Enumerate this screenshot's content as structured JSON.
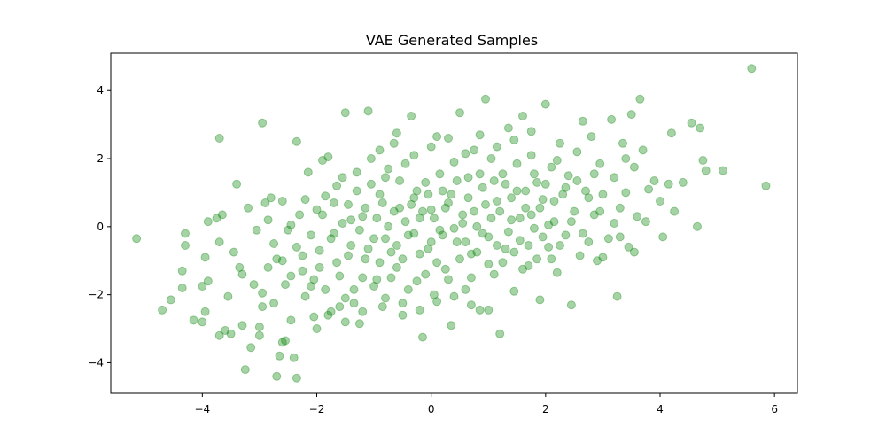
{
  "chart_data": {
    "type": "scatter",
    "title": "VAE Generated Samples",
    "xlabel": "",
    "ylabel": "",
    "xlim": [
      -5.6,
      6.4
    ],
    "ylim": [
      -4.9,
      5.1
    ],
    "xticks": [
      -4,
      -2,
      0,
      2,
      4,
      6
    ],
    "yticks": [
      -4,
      -2,
      0,
      2,
      4
    ],
    "xtick_labels": [
      "−4",
      "−2",
      "0",
      "2",
      "4",
      "6"
    ],
    "ytick_labels": [
      "−4",
      "−2",
      "0",
      "2",
      "4"
    ],
    "grid": false,
    "marker_color": "#008000",
    "marker_alpha": 0.35,
    "series": [
      {
        "points": [
          [
            -5.15,
            -0.35
          ],
          [
            -4.7,
            -2.45
          ],
          [
            -4.55,
            -2.15
          ],
          [
            -4.35,
            -1.3
          ],
          [
            -4.3,
            -0.2
          ],
          [
            -4.3,
            -0.55
          ],
          [
            -4.35,
            -1.8
          ],
          [
            -4.15,
            -2.75
          ],
          [
            -4.0,
            -2.8
          ],
          [
            -4.0,
            -1.75
          ],
          [
            -3.95,
            -2.5
          ],
          [
            -3.95,
            -0.9
          ],
          [
            -3.9,
            0.15
          ],
          [
            -3.9,
            -1.6
          ],
          [
            -3.75,
            0.25
          ],
          [
            -3.7,
            -0.45
          ],
          [
            -3.65,
            0.35
          ],
          [
            -3.6,
            -3.05
          ],
          [
            -3.7,
            -3.2
          ],
          [
            -3.7,
            2.6
          ],
          [
            -3.5,
            -3.15
          ],
          [
            -3.45,
            -0.75
          ],
          [
            -3.4,
            1.25
          ],
          [
            -3.35,
            -1.2
          ],
          [
            -3.3,
            -2.9
          ],
          [
            -3.25,
            -4.2
          ],
          [
            -3.15,
            -3.55
          ],
          [
            -3.1,
            -1.7
          ],
          [
            -3.0,
            -2.95
          ],
          [
            -3.0,
            -3.2
          ],
          [
            -2.95,
            3.05
          ],
          [
            -2.9,
            0.7
          ],
          [
            -2.85,
            -1.2
          ],
          [
            -2.8,
            0.85
          ],
          [
            -2.75,
            -0.5
          ],
          [
            -2.75,
            -2.25
          ],
          [
            -2.7,
            -4.4
          ],
          [
            -2.65,
            -3.8
          ],
          [
            -2.6,
            -3.4
          ],
          [
            -2.55,
            -3.35
          ],
          [
            -2.5,
            -0.1
          ],
          [
            -2.45,
            -2.75
          ],
          [
            -2.45,
            -1.45
          ],
          [
            -2.4,
            -3.85
          ],
          [
            -2.35,
            -4.45
          ],
          [
            -2.35,
            2.5
          ],
          [
            -2.3,
            0.35
          ],
          [
            -2.25,
            -0.85
          ],
          [
            -2.2,
            -2.05
          ],
          [
            -2.15,
            1.6
          ],
          [
            -2.1,
            -1.75
          ],
          [
            -2.05,
            -2.65
          ],
          [
            -2.0,
            0.5
          ],
          [
            -2.0,
            -3.0
          ],
          [
            -1.95,
            -1.2
          ],
          [
            -1.9,
            1.95
          ],
          [
            -1.85,
            0.9
          ],
          [
            -1.8,
            2.05
          ],
          [
            -1.75,
            -2.5
          ],
          [
            -1.7,
            -0.2
          ],
          [
            -1.65,
            1.2
          ],
          [
            -1.6,
            -1.45
          ],
          [
            -1.55,
            0.1
          ],
          [
            -1.5,
            3.35
          ],
          [
            -1.5,
            -2.1
          ],
          [
            -1.45,
            0.65
          ],
          [
            -1.4,
            -0.55
          ],
          [
            -1.35,
            -1.85
          ],
          [
            -1.3,
            1.6
          ],
          [
            -1.25,
            -2.85
          ],
          [
            -1.2,
            0.3
          ],
          [
            -1.15,
            -0.95
          ],
          [
            -1.1,
            3.4
          ],
          [
            -1.05,
            2.0
          ],
          [
            -1.0,
            -0.35
          ],
          [
            -0.95,
            -1.55
          ],
          [
            -0.9,
            0.95
          ],
          [
            -0.85,
            -2.35
          ],
          [
            -0.8,
            1.45
          ],
          [
            -0.75,
            0.0
          ],
          [
            -0.7,
            -0.75
          ],
          [
            -0.65,
            2.45
          ],
          [
            -0.6,
            -1.2
          ],
          [
            -0.55,
            0.55
          ],
          [
            -0.5,
            -2.6
          ],
          [
            -0.45,
            1.85
          ],
          [
            -0.4,
            -0.25
          ],
          [
            -0.35,
            3.25
          ],
          [
            -0.3,
            0.85
          ],
          [
            -0.25,
            -1.6
          ],
          [
            -0.2,
            0.25
          ],
          [
            -0.15,
            -3.25
          ],
          [
            -0.1,
            1.3
          ],
          [
            -0.05,
            -0.65
          ],
          [
            0.0,
            0.5
          ],
          [
            0.05,
            -2.0
          ],
          [
            0.1,
            2.65
          ],
          [
            0.15,
            -0.1
          ],
          [
            0.2,
            1.05
          ],
          [
            0.25,
            -1.25
          ],
          [
            0.3,
            0.7
          ],
          [
            0.35,
            -2.9
          ],
          [
            0.4,
            1.9
          ],
          [
            0.45,
            -0.45
          ],
          [
            0.5,
            3.35
          ],
          [
            0.55,
            0.35
          ],
          [
            0.6,
            -1.85
          ],
          [
            0.65,
            1.45
          ],
          [
            0.7,
            -0.8
          ],
          [
            0.75,
            2.25
          ],
          [
            0.8,
            0.0
          ],
          [
            0.85,
            -2.45
          ],
          [
            0.9,
            1.15
          ],
          [
            0.95,
            3.75
          ],
          [
            1.0,
            -0.3
          ],
          [
            1.05,
            2.0
          ],
          [
            1.1,
            -1.4
          ],
          [
            1.15,
            0.75
          ],
          [
            1.2,
            -3.15
          ],
          [
            1.25,
            1.55
          ],
          [
            1.3,
            -0.65
          ],
          [
            1.35,
            2.9
          ],
          [
            1.4,
            0.2
          ],
          [
            1.45,
            -1.9
          ],
          [
            1.5,
            1.05
          ],
          [
            1.55,
            -0.4
          ],
          [
            1.6,
            3.25
          ],
          [
            1.65,
            0.55
          ],
          [
            1.7,
            -1.15
          ],
          [
            1.75,
            2.1
          ],
          [
            1.8,
            -0.05
          ],
          [
            1.85,
            1.3
          ],
          [
            1.9,
            -2.15
          ],
          [
            1.95,
            0.8
          ],
          [
            2.0,
            3.6
          ],
          [
            2.05,
            -0.6
          ],
          [
            2.1,
            1.75
          ],
          [
            2.15,
            0.15
          ],
          [
            2.2,
            -1.35
          ],
          [
            2.25,
            2.45
          ],
          [
            2.3,
            0.95
          ],
          [
            2.35,
            -0.25
          ],
          [
            2.4,
            1.5
          ],
          [
            2.45,
            -2.3
          ],
          [
            2.5,
            0.45
          ],
          [
            2.55,
            2.2
          ],
          [
            2.6,
            -0.85
          ],
          [
            2.65,
            3.1
          ],
          [
            2.7,
            1.05
          ],
          [
            2.75,
            -0.45
          ],
          [
            2.8,
            2.65
          ],
          [
            2.85,
            0.35
          ],
          [
            2.9,
            -1.0
          ],
          [
            2.95,
            1.85
          ],
          [
            3.0,
            0.95
          ],
          [
            3.1,
            -0.35
          ],
          [
            3.15,
            3.15
          ],
          [
            3.2,
            1.45
          ],
          [
            3.25,
            -2.05
          ],
          [
            3.3,
            0.55
          ],
          [
            3.35,
            2.45
          ],
          [
            3.4,
            1.0
          ],
          [
            3.45,
            -0.6
          ],
          [
            3.5,
            3.3
          ],
          [
            3.55,
            1.75
          ],
          [
            3.6,
            0.3
          ],
          [
            3.65,
            3.75
          ],
          [
            3.7,
            2.25
          ],
          [
            3.75,
            0.15
          ],
          [
            3.8,
            1.1
          ],
          [
            3.9,
            1.35
          ],
          [
            4.0,
            0.75
          ],
          [
            4.05,
            -0.3
          ],
          [
            4.15,
            1.25
          ],
          [
            4.2,
            2.75
          ],
          [
            4.25,
            0.45
          ],
          [
            4.4,
            1.3
          ],
          [
            4.55,
            3.05
          ],
          [
            4.65,
            0.0
          ],
          [
            4.7,
            2.9
          ],
          [
            4.75,
            1.95
          ],
          [
            4.8,
            1.65
          ],
          [
            5.1,
            1.65
          ],
          [
            5.6,
            4.65
          ],
          [
            5.85,
            1.2
          ],
          [
            -3.2,
            0.55
          ],
          [
            -3.05,
            -0.1
          ],
          [
            -2.95,
            -1.95
          ],
          [
            -2.85,
            0.2
          ],
          [
            -2.7,
            -0.95
          ],
          [
            -2.6,
            0.75
          ],
          [
            -2.55,
            -1.7
          ],
          [
            -2.45,
            0.05
          ],
          [
            -2.35,
            -0.6
          ],
          [
            -2.25,
            -1.3
          ],
          [
            -2.2,
            0.8
          ],
          [
            -2.1,
            -0.25
          ],
          [
            -2.05,
            -1.55
          ],
          [
            -1.95,
            -0.7
          ],
          [
            -1.9,
            0.35
          ],
          [
            -1.85,
            -1.85
          ],
          [
            -1.75,
            -0.35
          ],
          [
            -1.7,
            0.7
          ],
          [
            -1.65,
            -1.05
          ],
          [
            -1.6,
            -2.35
          ],
          [
            -1.55,
            1.45
          ],
          [
            -1.45,
            -0.85
          ],
          [
            -1.4,
            0.2
          ],
          [
            -1.35,
            -2.25
          ],
          [
            -1.3,
            1.05
          ],
          [
            -1.25,
            -0.1
          ],
          [
            -1.2,
            -1.5
          ],
          [
            -1.15,
            0.55
          ],
          [
            -1.1,
            -0.65
          ],
          [
            -1.05,
            1.25
          ],
          [
            -1.0,
            -1.75
          ],
          [
            -0.95,
            0.25
          ],
          [
            -0.9,
            -1.05
          ],
          [
            -0.85,
            0.7
          ],
          [
            -0.8,
            -0.35
          ],
          [
            -0.75,
            1.7
          ],
          [
            -0.7,
            -1.5
          ],
          [
            -0.65,
            0.45
          ],
          [
            -0.6,
            -0.55
          ],
          [
            -0.55,
            1.35
          ],
          [
            -0.5,
            -0.95
          ],
          [
            -0.45,
            0.15
          ],
          [
            -0.4,
            -1.85
          ],
          [
            -0.35,
            0.65
          ],
          [
            -0.3,
            -0.2
          ],
          [
            -0.25,
            1.05
          ],
          [
            -0.2,
            -0.8
          ],
          [
            -0.15,
            0.45
          ],
          [
            -0.1,
            -1.4
          ],
          [
            -0.05,
            0.95
          ],
          [
            0.0,
            -0.45
          ],
          [
            0.05,
            0.25
          ],
          [
            0.1,
            -1.05
          ],
          [
            0.15,
            1.55
          ],
          [
            0.2,
            -0.25
          ],
          [
            0.25,
            0.55
          ],
          [
            0.3,
            -1.55
          ],
          [
            0.35,
            0.95
          ],
          [
            0.4,
            -0.05
          ],
          [
            0.45,
            1.35
          ],
          [
            0.5,
            -0.95
          ],
          [
            0.55,
            0.1
          ],
          [
            0.6,
            -0.45
          ],
          [
            0.65,
            0.85
          ],
          [
            0.7,
            -1.5
          ],
          [
            0.75,
            0.45
          ],
          [
            0.8,
            -0.75
          ],
          [
            0.85,
            1.55
          ],
          [
            0.9,
            -0.2
          ],
          [
            0.95,
            0.65
          ],
          [
            1.0,
            -1.1
          ],
          [
            1.05,
            0.25
          ],
          [
            1.1,
            1.35
          ],
          [
            1.15,
            -0.55
          ],
          [
            1.2,
            0.45
          ],
          [
            1.25,
            -1.05
          ],
          [
            1.3,
            1.25
          ],
          [
            1.35,
            -0.15
          ],
          [
            1.4,
            0.85
          ],
          [
            1.45,
            -0.75
          ],
          [
            1.5,
            1.85
          ],
          [
            1.55,
            0.25
          ],
          [
            1.6,
            -1.25
          ],
          [
            1.65,
            1.05
          ],
          [
            1.7,
            -0.55
          ],
          [
            1.75,
            0.35
          ],
          [
            1.8,
            1.55
          ],
          [
            1.85,
            -0.95
          ],
          [
            1.9,
            0.55
          ],
          [
            1.95,
            -0.3
          ],
          [
            2.0,
            1.25
          ],
          [
            2.05,
            0.05
          ],
          [
            2.1,
            -0.95
          ],
          [
            2.15,
            0.75
          ],
          [
            2.2,
            1.95
          ],
          [
            2.25,
            -0.55
          ],
          [
            2.35,
            1.15
          ],
          [
            2.45,
            0.15
          ],
          [
            2.55,
            1.35
          ],
          [
            2.65,
            -0.2
          ],
          [
            2.75,
            0.85
          ],
          [
            2.85,
            1.55
          ],
          [
            -0.9,
            2.25
          ],
          [
            -0.6,
            2.75
          ],
          [
            -0.3,
            2.1
          ],
          [
            0.0,
            2.35
          ],
          [
            0.3,
            2.6
          ],
          [
            0.6,
            2.15
          ],
          [
            0.85,
            2.7
          ],
          [
            1.15,
            2.35
          ],
          [
            1.45,
            2.55
          ],
          [
            1.75,
            2.8
          ],
          [
            -0.8,
            -2.1
          ],
          [
            -0.5,
            -2.25
          ],
          [
            -0.2,
            -2.45
          ],
          [
            0.1,
            -2.2
          ],
          [
            0.4,
            -2.05
          ],
          [
            0.7,
            -2.3
          ],
          [
            1.0,
            -2.45
          ],
          [
            -1.8,
            -2.6
          ],
          [
            -1.5,
            -2.8
          ],
          [
            -1.2,
            -2.5
          ],
          [
            -2.6,
            -1.0
          ],
          [
            -3.3,
            -1.4
          ],
          [
            -3.55,
            -2.05
          ],
          [
            -2.95,
            -2.35
          ],
          [
            3.0,
            -0.9
          ],
          [
            3.3,
            -0.3
          ],
          [
            3.55,
            -0.75
          ],
          [
            3.2,
            0.1
          ],
          [
            2.95,
            0.45
          ],
          [
            3.4,
            2.0
          ]
        ]
      }
    ]
  }
}
